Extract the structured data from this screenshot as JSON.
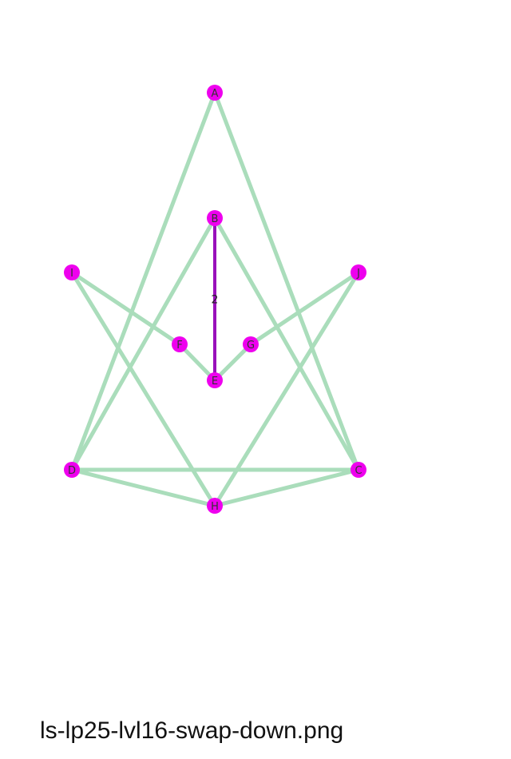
{
  "caption": "ls-lp25-lvl16-swap-down.png",
  "colors": {
    "node_fill": "#ee00ee",
    "edge": "#aaddbb",
    "highlight_edge": "#9911bb"
  },
  "nodes": [
    {
      "id": "A",
      "label": "A"
    },
    {
      "id": "B",
      "label": "B"
    },
    {
      "id": "I",
      "label": "I"
    },
    {
      "id": "J",
      "label": "J"
    },
    {
      "id": "F",
      "label": "F"
    },
    {
      "id": "G",
      "label": "G"
    },
    {
      "id": "E",
      "label": "E"
    },
    {
      "id": "D",
      "label": "D"
    },
    {
      "id": "C",
      "label": "C"
    },
    {
      "id": "H",
      "label": "H"
    }
  ],
  "edges": [
    {
      "from": "A",
      "to": "D"
    },
    {
      "from": "A",
      "to": "C"
    },
    {
      "from": "B",
      "to": "D"
    },
    {
      "from": "B",
      "to": "C"
    },
    {
      "from": "I",
      "to": "F"
    },
    {
      "from": "I",
      "to": "H"
    },
    {
      "from": "J",
      "to": "G"
    },
    {
      "from": "J",
      "to": "H"
    },
    {
      "from": "F",
      "to": "E"
    },
    {
      "from": "G",
      "to": "E"
    },
    {
      "from": "D",
      "to": "C"
    },
    {
      "from": "D",
      "to": "H"
    },
    {
      "from": "C",
      "to": "H"
    },
    {
      "from": "B",
      "to": "E",
      "label": "2",
      "highlight": true
    }
  ]
}
